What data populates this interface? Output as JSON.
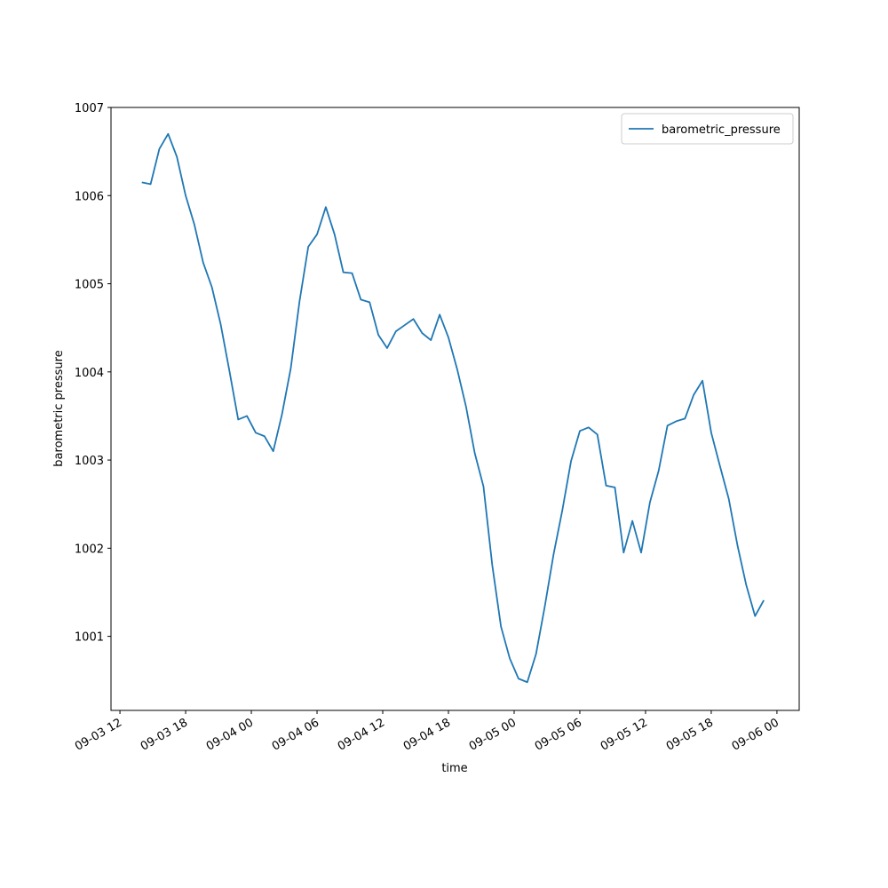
{
  "chart_data": {
    "type": "line",
    "xlabel": "time",
    "ylabel": "barometric pressure",
    "x": [
      "09-03 14:00",
      "09-03 14:48",
      "09-03 15:36",
      "09-03 16:24",
      "09-03 17:12",
      "09-03 18:00",
      "09-03 18:48",
      "09-03 19:36",
      "09-03 20:24",
      "09-03 21:12",
      "09-03 22:00",
      "09-03 22:48",
      "09-03 23:36",
      "09-04 00:24",
      "09-04 01:12",
      "09-04 02:00",
      "09-04 02:48",
      "09-04 03:36",
      "09-04 04:24",
      "09-04 05:12",
      "09-04 06:00",
      "09-04 06:48",
      "09-04 07:36",
      "09-04 08:24",
      "09-04 09:12",
      "09-04 10:00",
      "09-04 10:48",
      "09-04 11:36",
      "09-04 12:24",
      "09-04 13:12",
      "09-04 14:00",
      "09-04 14:48",
      "09-04 15:36",
      "09-04 16:24",
      "09-04 17:12",
      "09-04 18:00",
      "09-04 18:48",
      "09-04 19:36",
      "09-04 20:24",
      "09-04 21:12",
      "09-04 22:00",
      "09-04 22:48",
      "09-04 23:36",
      "09-05 00:24",
      "09-05 01:12",
      "09-05 02:00",
      "09-05 02:48",
      "09-05 03:36",
      "09-05 04:24",
      "09-05 05:12",
      "09-05 06:00",
      "09-05 06:48",
      "09-05 07:36",
      "09-05 08:24",
      "09-05 09:12",
      "09-05 10:00",
      "09-05 10:48",
      "09-05 11:36",
      "09-05 12:24",
      "09-05 13:12",
      "09-05 14:00",
      "09-05 14:48",
      "09-05 15:36",
      "09-05 16:24",
      "09-05 17:12",
      "09-05 18:00",
      "09-05 18:48",
      "09-05 19:36",
      "09-05 20:24",
      "09-05 21:12",
      "09-05 22:00",
      "09-05 22:48"
    ],
    "series": [
      {
        "name": "barometric_pressure",
        "color": "#1f77b4",
        "values": [
          1006.15,
          1006.13,
          1006.53,
          1006.7,
          1006.44,
          1006.0,
          1005.67,
          1005.24,
          1004.96,
          1004.54,
          1004.01,
          1003.46,
          1003.5,
          1003.31,
          1003.27,
          1003.1,
          1003.52,
          1004.04,
          1004.8,
          1005.42,
          1005.56,
          1005.87,
          1005.56,
          1005.13,
          1005.12,
          1004.82,
          1004.79,
          1004.42,
          1004.27,
          1004.46,
          1004.53,
          1004.6,
          1004.44,
          1004.36,
          1004.65,
          1004.39,
          1004.03,
          1003.61,
          1003.08,
          1002.7,
          1001.81,
          1001.11,
          1000.75,
          1000.52,
          1000.48,
          1000.8,
          1001.34,
          1001.93,
          1002.43,
          1002.99,
          1003.33,
          1003.37,
          1003.29,
          1002.71,
          1002.69,
          1001.95,
          1002.31,
          1001.95,
          1002.52,
          1002.88,
          1003.39,
          1003.44,
          1003.47,
          1003.74,
          1003.9,
          1003.31,
          1002.93,
          1002.56,
          1002.03,
          1001.58,
          1001.23,
          1001.41
        ]
      }
    ],
    "xlim": [
      "09-03 11:11",
      "09-06 02:02"
    ],
    "xticks": [
      {
        "value": "09-03 12:00",
        "label": "09-03 12"
      },
      {
        "value": "09-03 18:00",
        "label": "09-03 18"
      },
      {
        "value": "09-04 00:00",
        "label": "09-04 00"
      },
      {
        "value": "09-04 06:00",
        "label": "09-04 06"
      },
      {
        "value": "09-04 12:00",
        "label": "09-04 12"
      },
      {
        "value": "09-04 18:00",
        "label": "09-04 18"
      },
      {
        "value": "09-05 00:00",
        "label": "09-05 00"
      },
      {
        "value": "09-05 06:00",
        "label": "09-05 06"
      },
      {
        "value": "09-05 12:00",
        "label": "09-05 12"
      },
      {
        "value": "09-05 18:00",
        "label": "09-05 18"
      },
      {
        "value": "09-06 00:00",
        "label": "09-06 00"
      }
    ],
    "ylim": [
      1000.16,
      1007
    ],
    "yticks": [
      1001,
      1002,
      1003,
      1004,
      1005,
      1006,
      1007
    ],
    "legend": "upper right",
    "grid": false
  }
}
